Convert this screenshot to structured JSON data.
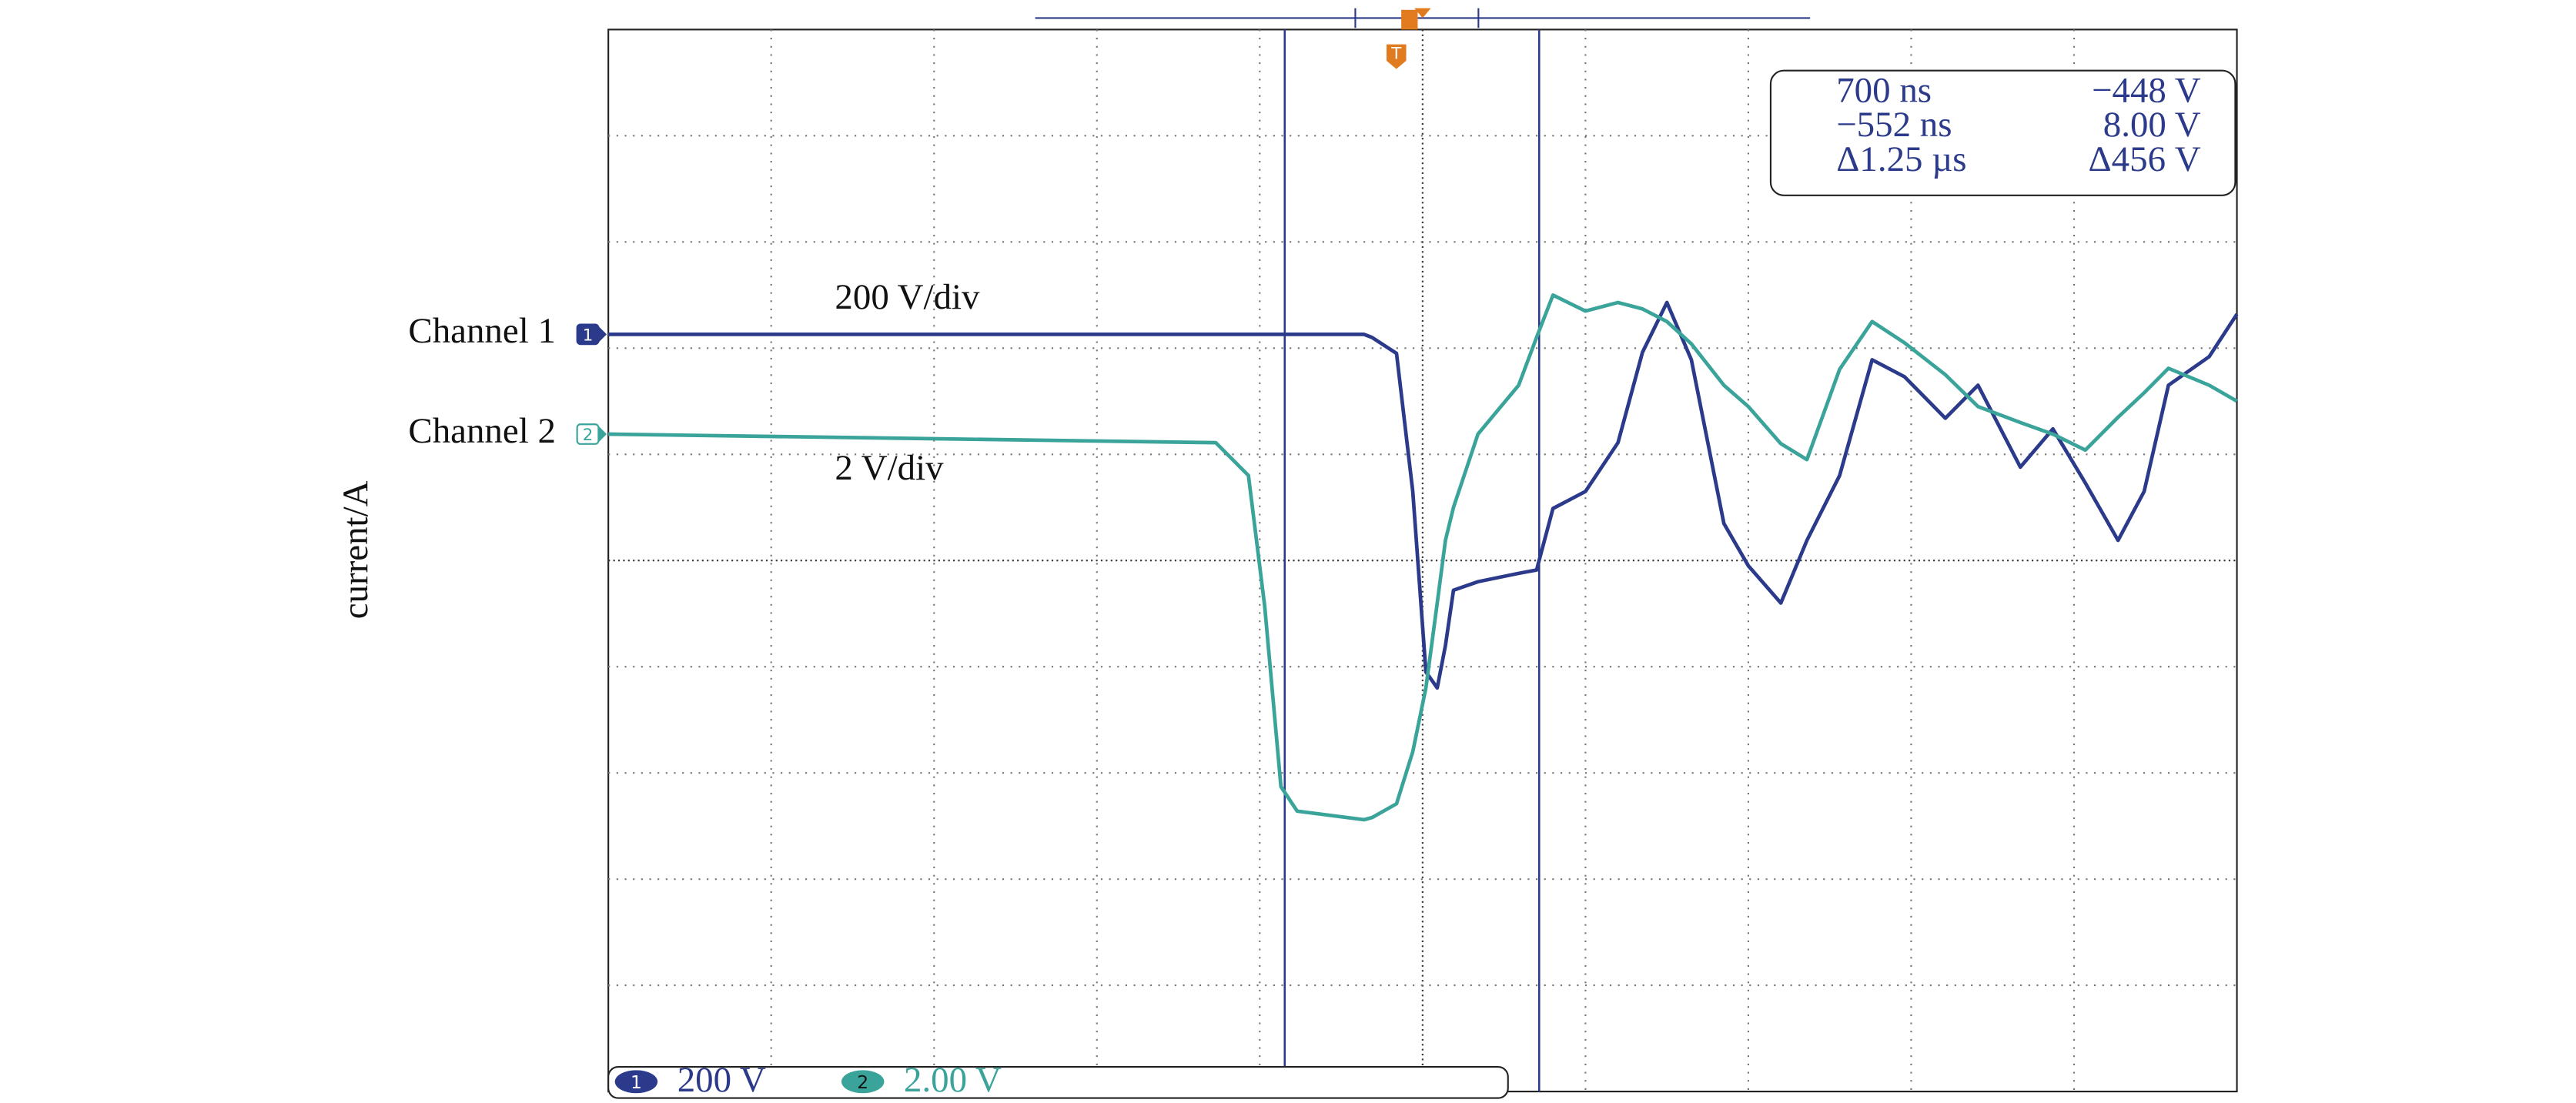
{
  "chart_data": {
    "type": "line",
    "y_label": "current/A",
    "x": [
      0,
      3.73,
      3.93,
      4.03,
      4.13,
      4.23,
      4.64,
      4.69,
      4.84,
      4.94,
      5.02,
      5.09,
      5.14,
      5.19,
      5.34,
      5.59,
      5.7,
      5.8,
      6.0,
      6.2,
      6.35,
      6.5,
      6.65,
      6.85,
      7.0,
      7.2,
      7.36,
      7.56,
      7.76,
      7.96,
      8.21,
      8.41,
      8.67,
      8.87,
      9.07,
      9.27,
      9.43,
      9.58,
      9.83,
      10
    ],
    "xlim": [
      0,
      10
    ],
    "ylim": [
      -5,
      5
    ],
    "grid": true,
    "series": [
      {
        "name": "Channel 1",
        "color": "#2b3a8a",
        "scale_label": "200 V/div",
        "number": "1",
        "status_scale": "200 V",
        "values": [
          2.13,
          2.13,
          2.13,
          2.13,
          2.13,
          2.13,
          2.13,
          2.1,
          1.95,
          0.65,
          -1.05,
          -1.2,
          -0.8,
          -0.28,
          -0.2,
          -0.12,
          -0.09,
          0.49,
          0.65,
          1.11,
          1.96,
          2.43,
          1.89,
          0.35,
          -0.05,
          -0.4,
          0.19,
          0.8,
          1.89,
          1.73,
          1.34,
          1.65,
          0.88,
          1.24,
          0.73,
          0.19,
          0.65,
          1.65,
          1.92,
          2.32
        ]
      },
      {
        "name": "Channel 2",
        "color": "#3aa39a",
        "scale_label": "2 V/div",
        "number": "2",
        "status_scale": "2.00 V",
        "values": [
          1.19,
          1.11,
          0.8,
          -0.43,
          -2.13,
          -2.36,
          -2.44,
          -2.42,
          -2.29,
          -1.8,
          -1.2,
          -0.4,
          0.19,
          0.5,
          1.19,
          1.65,
          2.1,
          2.5,
          2.35,
          2.43,
          2.37,
          2.25,
          2.04,
          1.65,
          1.45,
          1.1,
          0.95,
          1.8,
          2.25,
          2.05,
          1.75,
          1.45,
          1.3,
          1.19,
          1.04,
          1.35,
          1.58,
          1.81,
          1.65,
          1.5
        ]
      }
    ],
    "trigger_label": "T",
    "cursor_readout": [
      [
        "700 ns",
        "−448 V"
      ],
      [
        "−552 ns",
        "8.00 V"
      ],
      [
        "Δ1.25 µs",
        "Δ456 V"
      ]
    ]
  }
}
